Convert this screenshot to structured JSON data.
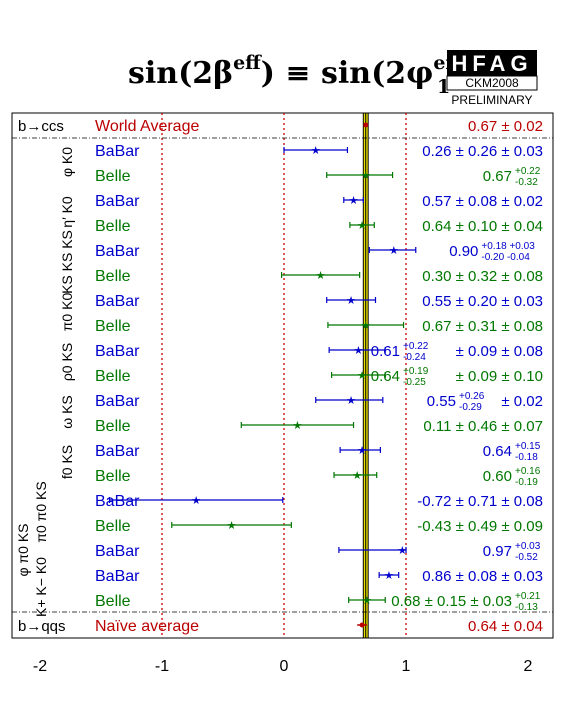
{
  "title": {
    "prefix": "sin(2β",
    "sup1": "eff",
    "mid": ") ≡ sin(2φ",
    "sub": "1",
    "sup2": "eff",
    "suffix": ")"
  },
  "logo": {
    "name": "HFAG",
    "sub1": "CKM2008",
    "sub2": "PRELIMINARY"
  },
  "colors": {
    "babar": "#0000cc",
    "belle": "#007700",
    "average": "#bb0000",
    "band": "#e8e000"
  },
  "chart_data": {
    "type": "scatter",
    "xlim": [
      -2,
      2
    ],
    "x_ticks": [
      "-2",
      "-1",
      "0",
      "1",
      "2"
    ],
    "world_average": {
      "label": "World Average",
      "mode": "b→ccs",
      "value": 0.67,
      "text": "0.67 ± 0.02"
    },
    "naive_average": {
      "label": "Naïve average",
      "mode": "b→qqs",
      "value": 0.64,
      "text": "0.64 ± 0.04"
    },
    "channels": [
      "φ K0",
      "η′ K0",
      "KS KS KS",
      "π0 K0",
      "ρ0 KS",
      "ω KS",
      "f0 KS",
      "π0 π0 KS",
      "φ π0 KS",
      "K+ K− K0"
    ],
    "rows": [
      {
        "exp": "BaBar",
        "channel": "φ K0",
        "value": 0.26,
        "lo": 0.0,
        "hi": 0.52,
        "text": "0.26 ± 0.26 ± 0.03"
      },
      {
        "exp": "Belle",
        "channel": "φ K0",
        "value": 0.67,
        "lo": 0.35,
        "hi": 0.89,
        "text": "0.67",
        "sup": "+0.22",
        "sub": "-0.32"
      },
      {
        "exp": "BaBar",
        "channel": "η′ K0",
        "value": 0.57,
        "lo": 0.49,
        "hi": 0.65,
        "text": "0.57 ± 0.08 ± 0.02"
      },
      {
        "exp": "Belle",
        "channel": "η′ K0",
        "value": 0.64,
        "lo": 0.54,
        "hi": 0.74,
        "text": "0.64 ± 0.10 ± 0.04"
      },
      {
        "exp": "BaBar",
        "channel": "KS KS KS",
        "value": 0.9,
        "lo": 0.7,
        "hi": 1.08,
        "text": "0.90",
        "sup": "+0.18 +0.03",
        "sub": "-0.20 -0.04"
      },
      {
        "exp": "Belle",
        "channel": "KS KS KS",
        "value": 0.3,
        "lo": -0.02,
        "hi": 0.62,
        "text": "0.30 ± 0.32 ± 0.08"
      },
      {
        "exp": "BaBar",
        "channel": "π0 K0",
        "value": 0.55,
        "lo": 0.35,
        "hi": 0.75,
        "text": "0.55 ± 0.20 ± 0.03"
      },
      {
        "exp": "Belle",
        "channel": "π0 K0",
        "value": 0.67,
        "lo": 0.36,
        "hi": 0.98,
        "text": "0.67 ± 0.31 ± 0.08"
      },
      {
        "exp": "BaBar",
        "channel": "ρ0 KS",
        "value": 0.61,
        "lo": 0.37,
        "hi": 0.83,
        "text": "0.61",
        "sup": "+0.22",
        "sub": "-0.24",
        "tail": " ± 0.09 ± 0.08"
      },
      {
        "exp": "Belle",
        "channel": "ρ0 KS",
        "value": 0.64,
        "lo": 0.39,
        "hi": 0.83,
        "text": "0.64",
        "sup": "+0.19",
        "sub": "-0.25",
        "tail": " ± 0.09 ± 0.10"
      },
      {
        "exp": "BaBar",
        "channel": "ω KS",
        "value": 0.55,
        "lo": 0.26,
        "hi": 0.81,
        "text": "0.55",
        "sup": "+0.26",
        "sub": "-0.29",
        "tail": " ± 0.02"
      },
      {
        "exp": "Belle",
        "channel": "ω KS",
        "value": 0.11,
        "lo": -0.35,
        "hi": 0.57,
        "text": "0.11 ± 0.46 ± 0.07"
      },
      {
        "exp": "BaBar",
        "channel": "f0 KS",
        "value": 0.64,
        "lo": 0.46,
        "hi": 0.79,
        "text": "0.64",
        "sup": "+0.15",
        "sub": "-0.18"
      },
      {
        "exp": "Belle",
        "channel": "f0 KS",
        "value": 0.6,
        "lo": 0.41,
        "hi": 0.76,
        "text": "0.60",
        "sup": "+0.16",
        "sub": "-0.19"
      },
      {
        "exp": "BaBar",
        "channel": "π0 π0 KS",
        "value": -0.72,
        "lo": -1.43,
        "hi": -0.01,
        "text": "-0.72 ± 0.71 ± 0.08"
      },
      {
        "exp": "Belle",
        "channel": "π0 π0 KS",
        "value": -0.43,
        "lo": -0.92,
        "hi": 0.06,
        "text": "-0.43 ± 0.49 ± 0.09"
      },
      {
        "exp": "BaBar",
        "channel": "φ π0 KS",
        "value": 0.97,
        "lo": 0.45,
        "hi": 1.0,
        "text": "0.97",
        "sup": "+0.03",
        "sub": "-0.52"
      },
      {
        "exp": "BaBar",
        "channel": "K+ K− K0",
        "value": 0.86,
        "lo": 0.78,
        "hi": 0.94,
        "text": "0.86 ± 0.08 ± 0.03"
      },
      {
        "exp": "Belle",
        "channel": "K+ K− K0",
        "value": 0.68,
        "lo": 0.53,
        "hi": 0.83,
        "text": "0.68 ± 0.15 ± 0.03",
        "sup": "+0.21",
        "sub": "-0.13"
      }
    ]
  }
}
